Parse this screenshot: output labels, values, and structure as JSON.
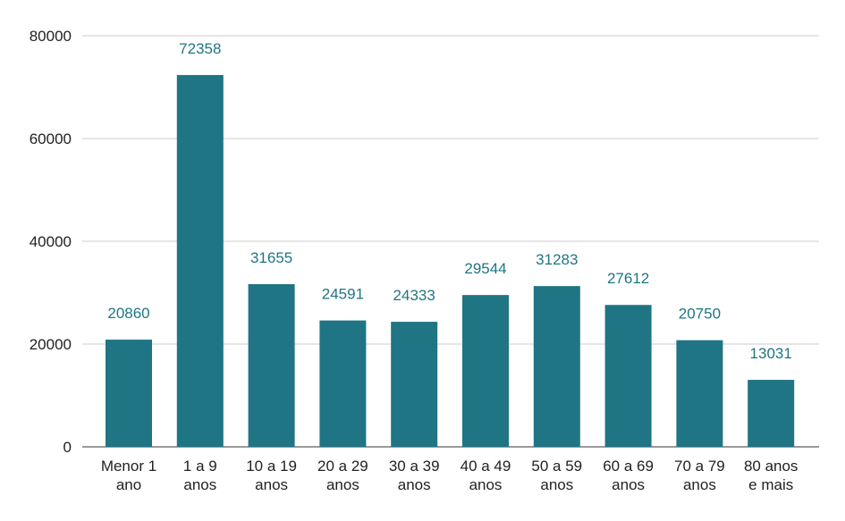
{
  "chart_data": {
    "type": "bar",
    "title": "",
    "xlabel": "",
    "ylabel": "",
    "ylim": [
      0,
      80000
    ],
    "yticks": [
      0,
      20000,
      40000,
      60000,
      80000
    ],
    "grid": true,
    "legend": "none",
    "bar_color": "#1f7584",
    "categories": [
      [
        "Menor 1",
        "ano"
      ],
      [
        "1 a 9",
        "anos"
      ],
      [
        "10 a 19",
        "anos"
      ],
      [
        "20 a 29",
        "anos"
      ],
      [
        "30 a 39",
        "anos"
      ],
      [
        "40 a 49",
        "anos"
      ],
      [
        "50 a 59",
        "anos"
      ],
      [
        "60 a 69",
        "anos"
      ],
      [
        "70 a 79",
        "anos"
      ],
      [
        "80 anos",
        "e mais"
      ]
    ],
    "values": [
      20860,
      72358,
      31655,
      24591,
      24333,
      29544,
      31283,
      27612,
      20750,
      13031
    ]
  }
}
